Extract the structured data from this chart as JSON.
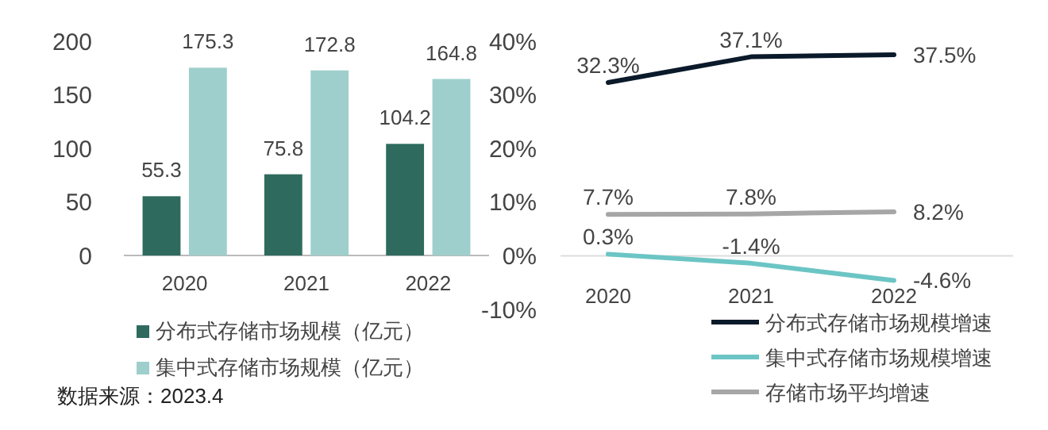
{
  "chart_data": [
    {
      "type": "bar",
      "categories": [
        "2020",
        "2021",
        "2022"
      ],
      "series": [
        {
          "name": "分布式存储市场规模（亿元）",
          "color": "#2e6b5e",
          "values": [
            55.3,
            75.8,
            104.2
          ]
        },
        {
          "name": "集中式存储市场规模（亿元）",
          "color": "#9ecfcc",
          "values": [
            175.3,
            172.8,
            164.8
          ]
        }
      ],
      "ylim": [
        0,
        200
      ],
      "yticks": [
        0,
        50,
        100,
        150,
        200
      ],
      "data_labels": true,
      "legend": "bottom",
      "grid": false,
      "annotations": [
        "数据来源：2023.4"
      ]
    },
    {
      "type": "line",
      "categories": [
        "2020",
        "2021",
        "2022"
      ],
      "series": [
        {
          "name": "分布式存储市场规模增速",
          "color": "#0b1a2a",
          "values": [
            32.3,
            37.1,
            37.5
          ]
        },
        {
          "name": "集中式存储市场规模增速",
          "color": "#6cc5c5",
          "values": [
            0.3,
            -1.4,
            -4.6
          ]
        },
        {
          "name": "存储市场平均增速",
          "color": "#a6a6a6",
          "values": [
            7.7,
            7.8,
            8.2
          ]
        }
      ],
      "ylim": [
        -10,
        40
      ],
      "yticks": [
        {
          "value": -10,
          "label": "-10%"
        },
        {
          "value": 0,
          "label": "0%"
        },
        {
          "value": 10,
          "label": "10%"
        },
        {
          "value": 20,
          "label": "20%"
        },
        {
          "value": 30,
          "label": "30%"
        },
        {
          "value": 40,
          "label": "40%"
        }
      ],
      "value_labels": [
        [
          "32.3%",
          "37.1%",
          "37.5%"
        ],
        [
          "0.3%",
          "-1.4%",
          "-4.6%"
        ],
        [
          "7.7%",
          "7.8%",
          "8.2%"
        ]
      ],
      "legend": "bottom right",
      "grid": false,
      "marker": "none",
      "line_style": "solid"
    }
  ]
}
